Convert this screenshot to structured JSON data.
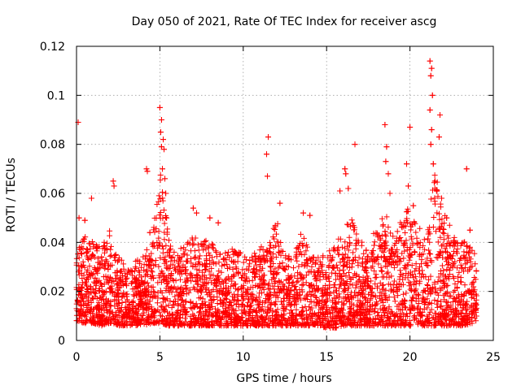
{
  "chart_data": {
    "type": "scatter",
    "title": "Day 050 of 2021, Rate Of TEC Index for receiver ascg",
    "xlabel": "GPS time / hours",
    "ylabel": "ROTI / TECUs",
    "xlim": [
      0,
      25
    ],
    "ylim": [
      0,
      0.12
    ],
    "xticks": [
      0,
      5,
      10,
      15,
      20,
      25
    ],
    "xtick_labels": [
      "0",
      "5",
      "10",
      "15",
      "20",
      "25"
    ],
    "yticks": [
      0,
      0.02,
      0.04,
      0.06,
      0.08,
      0.1,
      0.12
    ],
    "ytick_labels": [
      "0",
      "0.02",
      "0.04",
      "0.06",
      "0.08",
      "0.1",
      "0.12"
    ],
    "grid": true,
    "marker": "+",
    "series": [
      {
        "name": "ROTI",
        "color": "#ff0000",
        "envelope": {
          "x": [
            0.0,
            0.5,
            1.0,
            1.5,
            2.0,
            2.5,
            3.0,
            3.5,
            4.0,
            4.5,
            5.0,
            5.5,
            6.0,
            6.5,
            7.0,
            7.5,
            8.0,
            8.5,
            9.0,
            9.5,
            10.0,
            10.5,
            11.0,
            11.5,
            12.0,
            12.5,
            13.0,
            13.5,
            14.0,
            14.5,
            15.0,
            15.5,
            16.0,
            16.5,
            17.0,
            17.5,
            18.0,
            18.5,
            19.0,
            19.5,
            20.0,
            20.5,
            21.0,
            21.5,
            22.0,
            22.5,
            23.0,
            23.5,
            24.0
          ],
          "upper": [
            0.035,
            0.045,
            0.04,
            0.038,
            0.045,
            0.035,
            0.03,
            0.032,
            0.035,
            0.04,
            0.07,
            0.045,
            0.035,
            0.04,
            0.045,
            0.042,
            0.04,
            0.038,
            0.036,
            0.038,
            0.035,
            0.034,
            0.04,
            0.038,
            0.05,
            0.035,
            0.034,
            0.045,
            0.036,
            0.034,
            0.036,
            0.038,
            0.046,
            0.05,
            0.04,
            0.042,
            0.045,
            0.055,
            0.042,
            0.05,
            0.055,
            0.046,
            0.045,
            0.07,
            0.055,
            0.045,
            0.04,
            0.045,
            0.035
          ],
          "lower": [
            0.008,
            0.007,
            0.007,
            0.006,
            0.007,
            0.006,
            0.006,
            0.006,
            0.006,
            0.007,
            0.007,
            0.006,
            0.006,
            0.006,
            0.006,
            0.006,
            0.006,
            0.006,
            0.006,
            0.006,
            0.006,
            0.006,
            0.006,
            0.006,
            0.006,
            0.006,
            0.006,
            0.006,
            0.006,
            0.006,
            0.005,
            0.005,
            0.006,
            0.006,
            0.006,
            0.006,
            0.006,
            0.006,
            0.006,
            0.006,
            0.006,
            0.006,
            0.006,
            0.006,
            0.006,
            0.006,
            0.006,
            0.006,
            0.008
          ]
        },
        "outliers": [
          [
            0.1,
            0.089
          ],
          [
            0.15,
            0.05
          ],
          [
            0.5,
            0.049
          ],
          [
            0.9,
            0.058
          ],
          [
            2.2,
            0.065
          ],
          [
            2.25,
            0.063
          ],
          [
            4.2,
            0.07
          ],
          [
            4.25,
            0.069
          ],
          [
            4.4,
            0.044
          ],
          [
            5.0,
            0.095
          ],
          [
            5.1,
            0.09
          ],
          [
            5.05,
            0.085
          ],
          [
            5.2,
            0.082
          ],
          [
            5.1,
            0.079
          ],
          [
            5.25,
            0.078
          ],
          [
            5.15,
            0.07
          ],
          [
            5.3,
            0.066
          ],
          [
            5.35,
            0.06
          ],
          [
            5.4,
            0.05
          ],
          [
            7.0,
            0.054
          ],
          [
            7.2,
            0.052
          ],
          [
            8.0,
            0.05
          ],
          [
            8.5,
            0.048
          ],
          [
            11.5,
            0.083
          ],
          [
            11.4,
            0.076
          ],
          [
            11.45,
            0.067
          ],
          [
            12.2,
            0.056
          ],
          [
            13.6,
            0.052
          ],
          [
            14.0,
            0.051
          ],
          [
            15.8,
            0.061
          ],
          [
            16.1,
            0.07
          ],
          [
            16.15,
            0.068
          ],
          [
            16.3,
            0.062
          ],
          [
            16.7,
            0.08
          ],
          [
            18.5,
            0.088
          ],
          [
            18.6,
            0.079
          ],
          [
            18.55,
            0.073
          ],
          [
            18.7,
            0.068
          ],
          [
            18.8,
            0.06
          ],
          [
            19.8,
            0.072
          ],
          [
            19.9,
            0.063
          ],
          [
            20.0,
            0.087
          ],
          [
            20.2,
            0.055
          ],
          [
            21.2,
            0.114
          ],
          [
            21.3,
            0.111
          ],
          [
            21.25,
            0.108
          ],
          [
            21.35,
            0.1
          ],
          [
            21.2,
            0.094
          ],
          [
            21.3,
            0.086
          ],
          [
            21.25,
            0.08
          ],
          [
            21.4,
            0.072
          ],
          [
            21.5,
            0.065
          ],
          [
            21.8,
            0.092
          ],
          [
            21.75,
            0.083
          ],
          [
            21.9,
            0.058
          ],
          [
            22.2,
            0.05
          ],
          [
            23.4,
            0.07
          ],
          [
            23.6,
            0.045
          ]
        ]
      }
    ]
  }
}
